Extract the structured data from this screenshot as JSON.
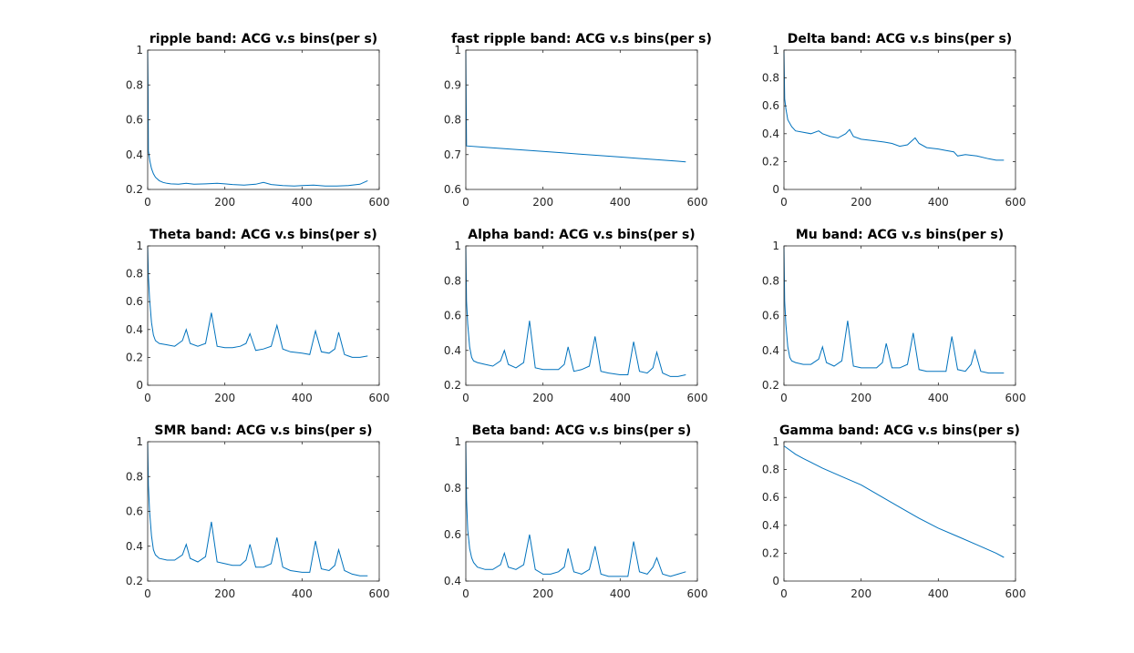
{
  "figure": {
    "line_color": "#0072BD",
    "axes_color": "#262626",
    "background": "#ffffff"
  },
  "chart_data": [
    {
      "type": "line",
      "title": "ripple band: ACG v.s bins(per s)",
      "xlim": [
        0,
        600
      ],
      "ylim": [
        0.2,
        1
      ],
      "xticks": [
        0,
        200,
        400,
        600
      ],
      "xtick_labels": [
        "0",
        "200",
        "400",
        "600"
      ],
      "yticks": [
        0.2,
        0.4,
        0.6,
        0.8,
        1
      ],
      "ytick_labels": [
        "0.2",
        "0.4",
        "0.6",
        "0.8",
        "1"
      ],
      "x": [
        0,
        1,
        2,
        4,
        6,
        10,
        15,
        20,
        30,
        40,
        50,
        60,
        80,
        100,
        120,
        150,
        180,
        200,
        220,
        250,
        280,
        300,
        320,
        350,
        380,
        400,
        430,
        460,
        490,
        520,
        550,
        570
      ],
      "y": [
        1.0,
        0.8,
        0.42,
        0.39,
        0.36,
        0.32,
        0.29,
        0.27,
        0.25,
        0.24,
        0.235,
        0.232,
        0.23,
        0.235,
        0.23,
        0.232,
        0.235,
        0.232,
        0.228,
        0.225,
        0.23,
        0.24,
        0.228,
        0.222,
        0.22,
        0.222,
        0.225,
        0.22,
        0.22,
        0.222,
        0.23,
        0.25
      ]
    },
    {
      "type": "line",
      "title": "fast ripple band: ACG v.s bins(per s)",
      "xlim": [
        0,
        600
      ],
      "ylim": [
        0.6,
        1
      ],
      "xticks": [
        0,
        200,
        400,
        600
      ],
      "xtick_labels": [
        "0",
        "200",
        "400",
        "600"
      ],
      "yticks": [
        0.6,
        0.7,
        0.8,
        0.9,
        1
      ],
      "ytick_labels": [
        "0.6",
        "0.7",
        "0.8",
        "0.9",
        "1"
      ],
      "x": [
        0,
        1,
        2,
        50,
        100,
        150,
        200,
        250,
        300,
        350,
        400,
        450,
        500,
        550,
        570
      ],
      "y": [
        1.0,
        0.85,
        0.725,
        0.721,
        0.717,
        0.713,
        0.709,
        0.705,
        0.701,
        0.697,
        0.693,
        0.689,
        0.685,
        0.681,
        0.679
      ]
    },
    {
      "type": "line",
      "title": "Delta band: ACG v.s bins(per s)",
      "xlim": [
        0,
        600
      ],
      "ylim": [
        0,
        1
      ],
      "xticks": [
        0,
        200,
        400,
        600
      ],
      "xtick_labels": [
        "0",
        "200",
        "400",
        "600"
      ],
      "yticks": [
        0,
        0.2,
        0.4,
        0.6,
        0.8,
        1
      ],
      "ytick_labels": [
        "0",
        "0.2",
        "0.4",
        "0.6",
        "0.8",
        "1"
      ],
      "x": [
        0,
        2,
        5,
        10,
        20,
        30,
        50,
        70,
        90,
        100,
        120,
        140,
        160,
        170,
        180,
        200,
        230,
        260,
        280,
        300,
        320,
        340,
        350,
        370,
        400,
        420,
        440,
        450,
        470,
        500,
        530,
        550,
        570
      ],
      "y": [
        1.0,
        0.65,
        0.58,
        0.5,
        0.45,
        0.42,
        0.41,
        0.4,
        0.42,
        0.4,
        0.38,
        0.37,
        0.4,
        0.43,
        0.38,
        0.36,
        0.35,
        0.34,
        0.33,
        0.31,
        0.32,
        0.37,
        0.33,
        0.3,
        0.29,
        0.28,
        0.27,
        0.24,
        0.25,
        0.24,
        0.22,
        0.21,
        0.21
      ]
    },
    {
      "type": "line",
      "title": "Theta band: ACG v.s bins(per s)",
      "xlim": [
        0,
        600
      ],
      "ylim": [
        0,
        1
      ],
      "xticks": [
        0,
        200,
        400,
        600
      ],
      "xtick_labels": [
        "0",
        "200",
        "400",
        "600"
      ],
      "yticks": [
        0,
        0.2,
        0.4,
        0.6,
        0.8,
        1
      ],
      "ytick_labels": [
        "0",
        "0.2",
        "0.4",
        "0.6",
        "0.8",
        "1"
      ],
      "x": [
        0,
        2,
        5,
        10,
        15,
        20,
        30,
        50,
        70,
        90,
        100,
        110,
        130,
        150,
        165,
        180,
        200,
        220,
        240,
        255,
        265,
        280,
        300,
        320,
        335,
        350,
        370,
        400,
        420,
        435,
        450,
        470,
        485,
        495,
        510,
        530,
        550,
        570
      ],
      "y": [
        1.0,
        0.78,
        0.62,
        0.45,
        0.36,
        0.32,
        0.3,
        0.29,
        0.28,
        0.32,
        0.4,
        0.3,
        0.28,
        0.3,
        0.52,
        0.28,
        0.27,
        0.27,
        0.28,
        0.3,
        0.37,
        0.25,
        0.26,
        0.28,
        0.43,
        0.26,
        0.24,
        0.23,
        0.22,
        0.39,
        0.24,
        0.23,
        0.26,
        0.38,
        0.22,
        0.2,
        0.2,
        0.21
      ]
    },
    {
      "type": "line",
      "title": "Alpha band: ACG v.s bins(per s)",
      "xlim": [
        0,
        600
      ],
      "ylim": [
        0.2,
        1
      ],
      "xticks": [
        0,
        200,
        400,
        600
      ],
      "xtick_labels": [
        "0",
        "200",
        "400",
        "600"
      ],
      "yticks": [
        0.2,
        0.4,
        0.6,
        0.8,
        1
      ],
      "ytick_labels": [
        "0.2",
        "0.4",
        "0.6",
        "0.8",
        "1"
      ],
      "x": [
        0,
        2,
        5,
        10,
        15,
        20,
        30,
        50,
        70,
        90,
        100,
        110,
        130,
        150,
        165,
        180,
        200,
        220,
        240,
        255,
        265,
        280,
        300,
        320,
        335,
        350,
        370,
        400,
        420,
        435,
        450,
        470,
        485,
        495,
        510,
        530,
        550,
        570
      ],
      "y": [
        1.0,
        0.68,
        0.55,
        0.42,
        0.36,
        0.34,
        0.33,
        0.32,
        0.31,
        0.34,
        0.4,
        0.32,
        0.3,
        0.33,
        0.57,
        0.3,
        0.29,
        0.29,
        0.29,
        0.32,
        0.42,
        0.28,
        0.29,
        0.31,
        0.48,
        0.28,
        0.27,
        0.26,
        0.26,
        0.45,
        0.28,
        0.27,
        0.3,
        0.39,
        0.27,
        0.25,
        0.25,
        0.26
      ]
    },
    {
      "type": "line",
      "title": "Mu band: ACG v.s bins(per s)",
      "xlim": [
        0,
        600
      ],
      "ylim": [
        0.2,
        1
      ],
      "xticks": [
        0,
        200,
        400,
        600
      ],
      "xtick_labels": [
        "0",
        "200",
        "400",
        "600"
      ],
      "yticks": [
        0.2,
        0.4,
        0.6,
        0.8,
        1
      ],
      "ytick_labels": [
        "0.2",
        "0.4",
        "0.6",
        "0.8",
        "1"
      ],
      "x": [
        0,
        2,
        5,
        10,
        15,
        20,
        30,
        50,
        70,
        90,
        100,
        110,
        130,
        150,
        165,
        180,
        200,
        220,
        240,
        255,
        265,
        280,
        300,
        320,
        335,
        350,
        370,
        400,
        420,
        435,
        450,
        470,
        485,
        495,
        510,
        530,
        550,
        570
      ],
      "y": [
        1.0,
        0.68,
        0.55,
        0.42,
        0.36,
        0.34,
        0.33,
        0.32,
        0.32,
        0.35,
        0.42,
        0.33,
        0.31,
        0.34,
        0.57,
        0.31,
        0.3,
        0.3,
        0.3,
        0.33,
        0.44,
        0.3,
        0.3,
        0.32,
        0.5,
        0.29,
        0.28,
        0.28,
        0.28,
        0.48,
        0.29,
        0.28,
        0.32,
        0.4,
        0.28,
        0.27,
        0.27,
        0.27
      ]
    },
    {
      "type": "line",
      "title": "SMR band: ACG v.s bins(per s)",
      "xlim": [
        0,
        600
      ],
      "ylim": [
        0.2,
        1
      ],
      "xticks": [
        0,
        200,
        400,
        600
      ],
      "xtick_labels": [
        "0",
        "200",
        "400",
        "600"
      ],
      "yticks": [
        0.2,
        0.4,
        0.6,
        0.8,
        1
      ],
      "ytick_labels": [
        "0.2",
        "0.4",
        "0.6",
        "0.8",
        "1"
      ],
      "x": [
        0,
        2,
        5,
        10,
        15,
        20,
        30,
        50,
        70,
        90,
        100,
        110,
        130,
        150,
        165,
        180,
        200,
        220,
        240,
        255,
        265,
        280,
        300,
        320,
        335,
        350,
        370,
        400,
        420,
        435,
        450,
        470,
        485,
        495,
        510,
        530,
        550,
        570
      ],
      "y": [
        1.0,
        0.75,
        0.6,
        0.46,
        0.38,
        0.35,
        0.33,
        0.32,
        0.32,
        0.35,
        0.41,
        0.33,
        0.31,
        0.34,
        0.54,
        0.31,
        0.3,
        0.29,
        0.29,
        0.32,
        0.41,
        0.28,
        0.28,
        0.3,
        0.45,
        0.28,
        0.26,
        0.25,
        0.25,
        0.43,
        0.27,
        0.26,
        0.29,
        0.38,
        0.26,
        0.24,
        0.23,
        0.23
      ]
    },
    {
      "type": "line",
      "title": "Beta band: ACG v.s bins(per s)",
      "xlim": [
        0,
        600
      ],
      "ylim": [
        0.4,
        1
      ],
      "xticks": [
        0,
        200,
        400,
        600
      ],
      "xtick_labels": [
        "0",
        "200",
        "400",
        "600"
      ],
      "yticks": [
        0.4,
        0.6,
        0.8,
        1
      ],
      "ytick_labels": [
        "0.4",
        "0.6",
        "0.8",
        "1"
      ],
      "x": [
        0,
        2,
        5,
        10,
        15,
        20,
        30,
        50,
        70,
        90,
        100,
        110,
        130,
        150,
        165,
        180,
        200,
        220,
        240,
        255,
        265,
        280,
        300,
        320,
        335,
        350,
        370,
        400,
        420,
        435,
        450,
        470,
        485,
        495,
        510,
        530,
        550,
        570
      ],
      "y": [
        1.0,
        0.75,
        0.62,
        0.54,
        0.5,
        0.48,
        0.46,
        0.45,
        0.45,
        0.47,
        0.52,
        0.46,
        0.45,
        0.47,
        0.6,
        0.45,
        0.43,
        0.43,
        0.44,
        0.46,
        0.54,
        0.44,
        0.43,
        0.45,
        0.55,
        0.43,
        0.42,
        0.42,
        0.42,
        0.57,
        0.44,
        0.43,
        0.46,
        0.5,
        0.43,
        0.42,
        0.43,
        0.44
      ]
    },
    {
      "type": "line",
      "title": "Gamma band: ACG v.s bins(per s)",
      "xlim": [
        0,
        600
      ],
      "ylim": [
        0,
        1
      ],
      "xticks": [
        0,
        200,
        400,
        600
      ],
      "xtick_labels": [
        "0",
        "200",
        "400",
        "600"
      ],
      "yticks": [
        0,
        0.2,
        0.4,
        0.6,
        0.8,
        1
      ],
      "ytick_labels": [
        "0",
        "0.2",
        "0.4",
        "0.6",
        "0.8",
        "1"
      ],
      "x": [
        0,
        10,
        30,
        50,
        100,
        150,
        200,
        250,
        300,
        350,
        400,
        450,
        500,
        550,
        570
      ],
      "y": [
        0.97,
        0.95,
        0.91,
        0.88,
        0.81,
        0.75,
        0.69,
        0.61,
        0.53,
        0.45,
        0.38,
        0.32,
        0.26,
        0.2,
        0.17
      ]
    }
  ]
}
